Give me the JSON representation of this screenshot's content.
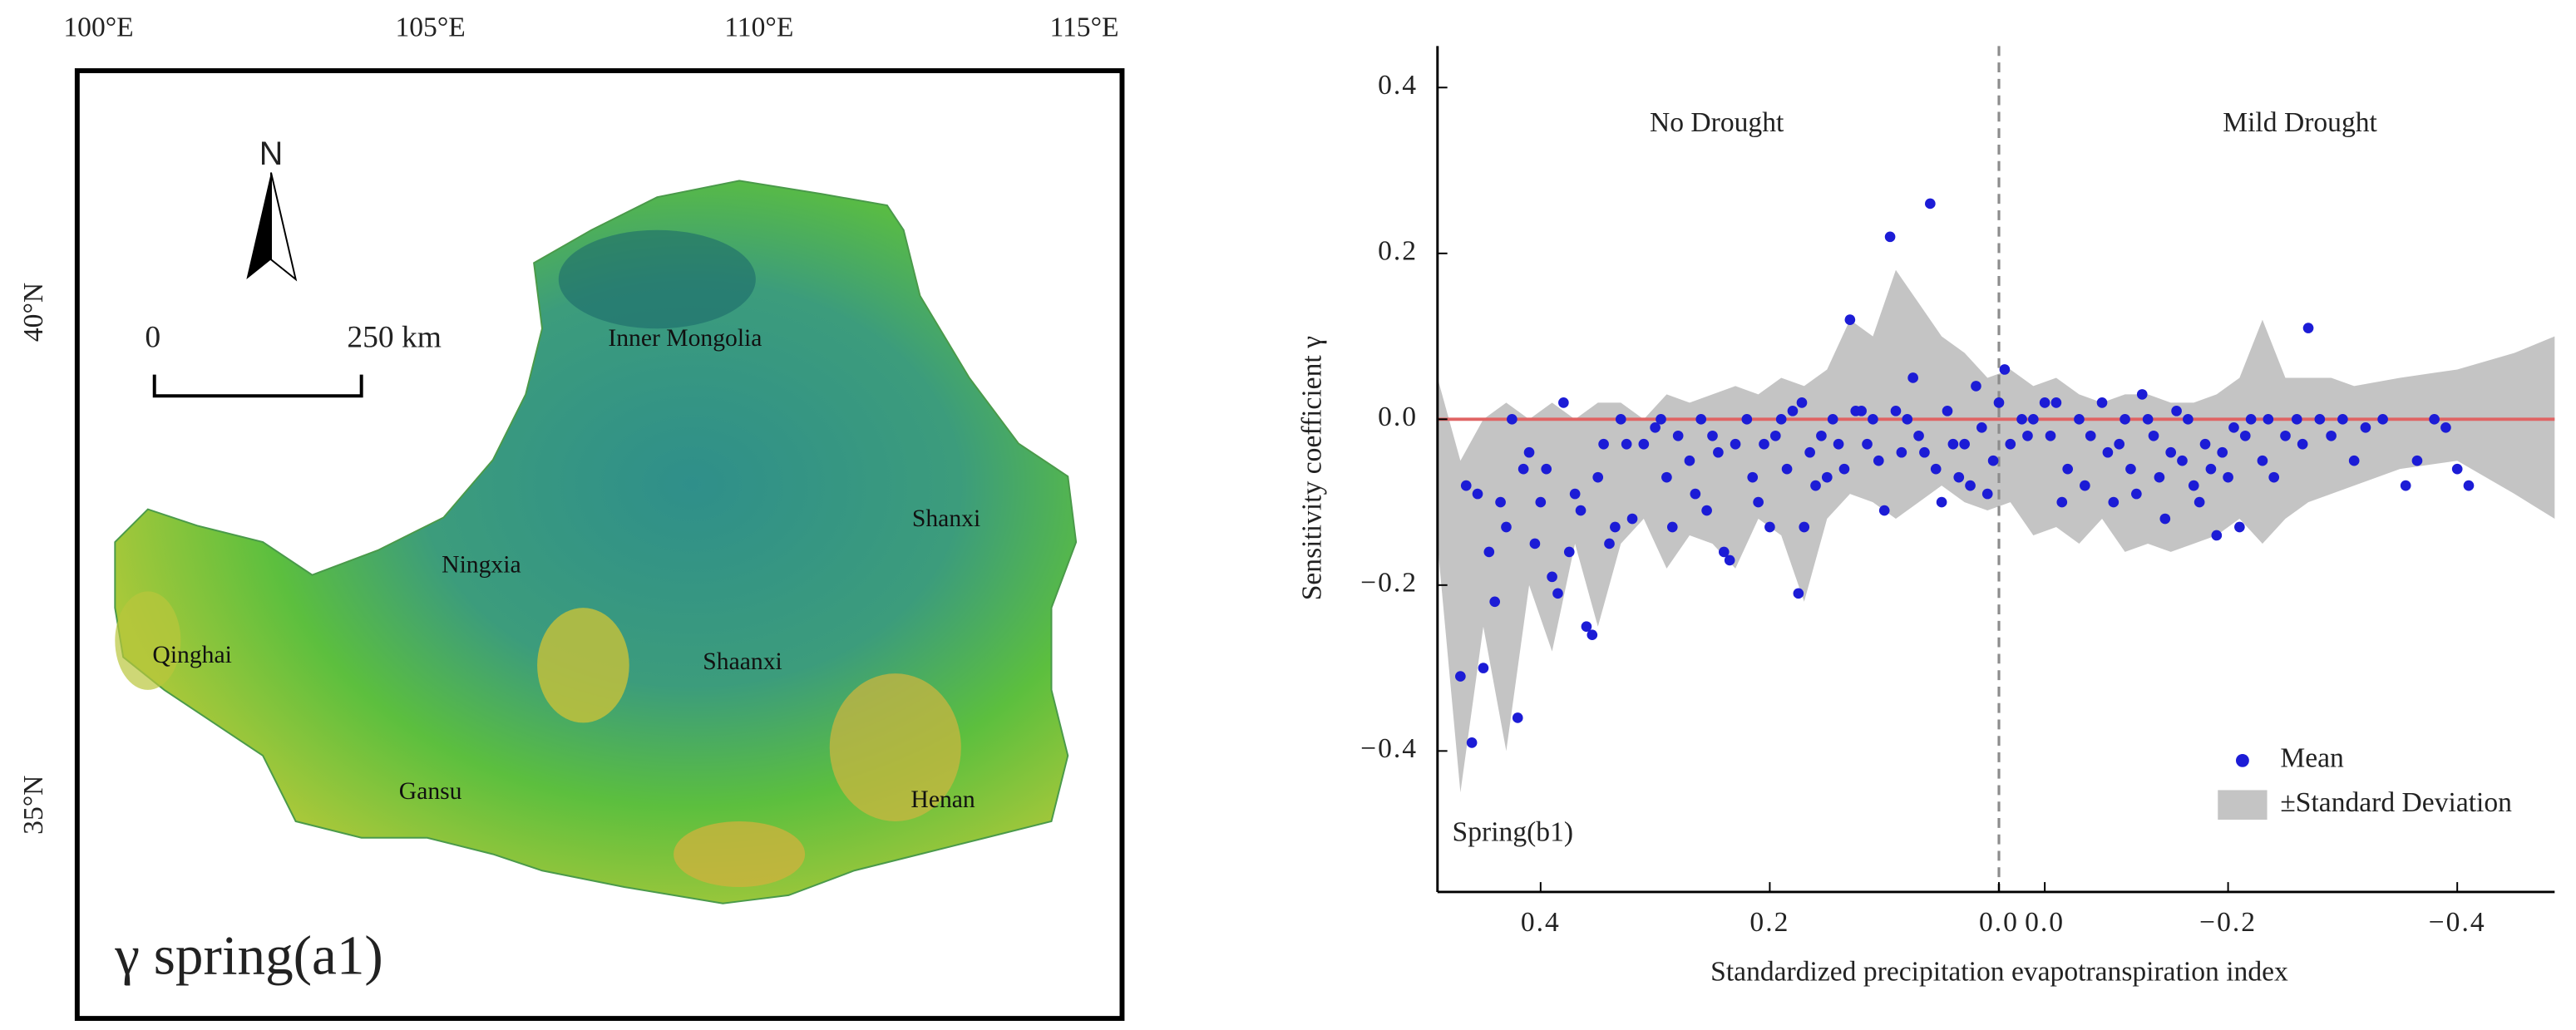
{
  "chart_data": [
    {
      "type": "map",
      "title": "γ spring(a1)",
      "lon_labels": [
        "100°E",
        "105°E",
        "110°E",
        "115°E"
      ],
      "lat_labels": [
        "40°N",
        "35°N"
      ],
      "north": "N",
      "scale_labels": [
        "0",
        "250 km"
      ],
      "regions": [
        "Inner Mongolia",
        "Ningxia",
        "Qinghai",
        "Shaanxi",
        "Shanxi",
        "Gansu",
        "Henan"
      ]
    },
    {
      "type": "scatter",
      "xlabel": "Standardized precipitation evapotranspiration index",
      "ylabel": "Sensitivity coefficient γ",
      "annotations": [
        "No Drought",
        "Mild Drought",
        "Spring(b1)"
      ],
      "xlim": [
        0.49,
        -0.485
      ],
      "ylim": [
        -0.57,
        0.45
      ],
      "xticks": [
        0.4,
        0.2,
        {
          "value": 0,
          "label": "0.0"
        },
        {
          "value": -0.04,
          "label": "0.0"
        },
        {
          "value": -0.2,
          "label": "−0.2"
        },
        {
          "value": -0.4,
          "label": "−0.4"
        }
      ],
      "yticks": [
        {
          "value": -0.4,
          "label": "−0.4"
        },
        {
          "value": -0.2,
          "label": "−0.2"
        },
        {
          "value": 0,
          "label": "0.0"
        },
        0.2,
        0.4
      ],
      "legend": "lower right",
      "reference_lines": [
        {
          "axis": "y",
          "value": 0,
          "color": "#e06464"
        },
        {
          "axis": "x",
          "value": 0,
          "color": "#8c8c8c",
          "dashed": true
        }
      ],
      "series": [
        {
          "name": "±Standard Deviation",
          "kind": "band",
          "color": "#c4c4c4",
          "x": [
            0.49,
            0.47,
            0.45,
            0.43,
            0.41,
            0.39,
            0.37,
            0.35,
            0.33,
            0.31,
            0.29,
            0.27,
            0.25,
            0.23,
            0.21,
            0.19,
            0.17,
            0.15,
            0.13,
            0.11,
            0.09,
            0.07,
            0.05,
            0.03,
            0.01,
            -0.01,
            -0.03,
            -0.05,
            -0.07,
            -0.09,
            -0.11,
            -0.13,
            -0.15,
            -0.17,
            -0.19,
            -0.21,
            -0.23,
            -0.25,
            -0.27,
            -0.29,
            -0.31,
            -0.35,
            -0.4,
            -0.45,
            -0.485
          ],
          "upper": [
            0.05,
            -0.05,
            0.0,
            0.02,
            0.0,
            0.02,
            0.0,
            0.02,
            0.02,
            0.0,
            0.03,
            0.02,
            0.03,
            0.04,
            0.03,
            0.05,
            0.04,
            0.06,
            0.12,
            0.1,
            0.18,
            0.14,
            0.1,
            0.08,
            0.05,
            0.06,
            0.04,
            0.05,
            0.03,
            0.02,
            0.03,
            0.03,
            0.02,
            0.02,
            0.03,
            0.05,
            0.12,
            0.05,
            0.05,
            0.05,
            0.04,
            0.05,
            0.06,
            0.08,
            0.1
          ],
          "lower": [
            -0.15,
            -0.45,
            -0.25,
            -0.4,
            -0.2,
            -0.28,
            -0.15,
            -0.25,
            -0.15,
            -0.12,
            -0.18,
            -0.14,
            -0.15,
            -0.18,
            -0.12,
            -0.14,
            -0.22,
            -0.12,
            -0.09,
            -0.1,
            -0.12,
            -0.1,
            -0.08,
            -0.1,
            -0.11,
            -0.1,
            -0.14,
            -0.13,
            -0.15,
            -0.12,
            -0.16,
            -0.15,
            -0.16,
            -0.15,
            -0.14,
            -0.12,
            -0.15,
            -0.12,
            -0.1,
            -0.09,
            -0.08,
            -0.06,
            -0.05,
            -0.09,
            -0.12
          ]
        },
        {
          "name": "Mean",
          "kind": "points",
          "color": "#1c1cd6",
          "x": [
            0.47,
            0.465,
            0.46,
            0.455,
            0.45,
            0.445,
            0.44,
            0.435,
            0.43,
            0.425,
            0.42,
            0.415,
            0.41,
            0.405,
            0.4,
            0.395,
            0.39,
            0.385,
            0.38,
            0.375,
            0.37,
            0.365,
            0.36,
            0.355,
            0.35,
            0.345,
            0.34,
            0.335,
            0.33,
            0.325,
            0.32,
            0.31,
            0.3,
            0.295,
            0.29,
            0.285,
            0.28,
            0.27,
            0.265,
            0.26,
            0.255,
            0.25,
            0.245,
            0.24,
            0.235,
            0.23,
            0.22,
            0.215,
            0.21,
            0.205,
            0.2,
            0.195,
            0.19,
            0.185,
            0.18,
            0.175,
            0.172,
            0.17,
            0.165,
            0.16,
            0.155,
            0.15,
            0.145,
            0.14,
            0.135,
            0.13,
            0.125,
            0.12,
            0.115,
            0.11,
            0.105,
            0.1,
            0.095,
            0.09,
            0.085,
            0.08,
            0.075,
            0.07,
            0.065,
            0.06,
            0.055,
            0.05,
            0.045,
            0.04,
            0.035,
            0.03,
            0.025,
            0.02,
            0.015,
            0.01,
            0.005,
            0.0,
            -0.005,
            -0.01,
            -0.02,
            -0.025,
            -0.03,
            -0.04,
            -0.045,
            -0.05,
            -0.055,
            -0.06,
            -0.07,
            -0.075,
            -0.08,
            -0.09,
            -0.095,
            -0.1,
            -0.105,
            -0.11,
            -0.115,
            -0.12,
            -0.125,
            -0.13,
            -0.135,
            -0.14,
            -0.145,
            -0.15,
            -0.155,
            -0.16,
            -0.165,
            -0.17,
            -0.175,
            -0.18,
            -0.185,
            -0.19,
            -0.195,
            -0.2,
            -0.205,
            -0.21,
            -0.215,
            -0.22,
            -0.23,
            -0.235,
            -0.24,
            -0.25,
            -0.26,
            -0.265,
            -0.27,
            -0.28,
            -0.29,
            -0.3,
            -0.31,
            -0.32,
            -0.335,
            -0.355,
            -0.365,
            -0.38,
            -0.39,
            -0.4,
            -0.41
          ],
          "values": [
            -0.31,
            -0.08,
            -0.39,
            -0.09,
            -0.3,
            -0.16,
            -0.22,
            -0.1,
            -0.13,
            0.0,
            -0.36,
            -0.06,
            -0.04,
            -0.15,
            -0.1,
            -0.06,
            -0.19,
            -0.21,
            0.02,
            -0.16,
            -0.09,
            -0.11,
            -0.25,
            -0.26,
            -0.07,
            -0.03,
            -0.15,
            -0.13,
            0.0,
            -0.03,
            -0.12,
            -0.03,
            -0.01,
            0.0,
            -0.07,
            -0.13,
            -0.02,
            -0.05,
            -0.09,
            0.0,
            -0.11,
            -0.02,
            -0.04,
            -0.16,
            -0.17,
            -0.03,
            0.0,
            -0.07,
            -0.1,
            -0.03,
            -0.13,
            -0.02,
            0.0,
            -0.06,
            0.01,
            -0.21,
            0.02,
            -0.13,
            -0.04,
            -0.08,
            -0.02,
            -0.07,
            0.0,
            -0.03,
            -0.06,
            0.12,
            0.01,
            0.01,
            -0.03,
            0.0,
            -0.05,
            -0.11,
            0.22,
            0.01,
            -0.04,
            0.0,
            0.05,
            -0.02,
            -0.04,
            0.26,
            -0.06,
            -0.1,
            0.01,
            -0.03,
            -0.07,
            -0.03,
            -0.08,
            0.04,
            -0.01,
            -0.09,
            -0.05,
            0.02,
            0.06,
            -0.03,
            0.0,
            -0.02,
            0.0,
            0.02,
            -0.02,
            0.02,
            -0.1,
            -0.06,
            0.0,
            -0.08,
            -0.02,
            0.02,
            -0.04,
            -0.1,
            -0.03,
            0.0,
            -0.06,
            -0.09,
            0.03,
            0.0,
            -0.02,
            -0.07,
            -0.12,
            -0.04,
            0.01,
            -0.05,
            0.0,
            -0.08,
            -0.1,
            -0.03,
            -0.06,
            -0.14,
            -0.04,
            -0.07,
            -0.01,
            -0.13,
            -0.02,
            0.0,
            -0.05,
            0.0,
            -0.07,
            -0.02,
            0.0,
            -0.03,
            0.11,
            0.0,
            -0.02,
            0.0,
            -0.05,
            -0.01,
            0.0,
            -0.08,
            -0.05,
            0.0,
            -0.01,
            -0.06,
            -0.08
          ]
        }
      ]
    }
  ]
}
